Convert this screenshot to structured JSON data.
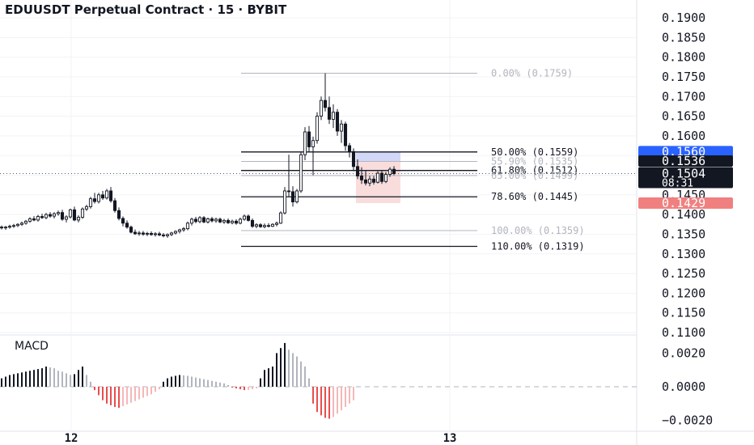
{
  "chart_data": [
    {
      "type": "candlestick",
      "title": "EDUUSDT Perpetual Contract · 15 · BYBIT",
      "x_ticks": [
        "12",
        "13"
      ],
      "y_ticks": [
        "0.1900",
        "0.1850",
        "0.1800",
        "0.1750",
        "0.1700",
        "0.1650",
        "0.1600",
        "0.1550",
        "0.1500",
        "0.1450",
        "0.1400",
        "0.1350",
        "0.1300",
        "0.1250",
        "0.1200",
        "0.1150",
        "0.1100"
      ],
      "ylim": [
        0.1068,
        0.1936
      ],
      "grid": true,
      "candles": [
        [
          0.1368,
          0.1372,
          0.1362,
          0.1366
        ],
        [
          0.1366,
          0.1371,
          0.1361,
          0.1368
        ],
        [
          0.1368,
          0.1374,
          0.1364,
          0.137
        ],
        [
          0.137,
          0.1376,
          0.1366,
          0.1372
        ],
        [
          0.1372,
          0.1378,
          0.1368,
          0.1375
        ],
        [
          0.1375,
          0.1382,
          0.1371,
          0.1378
        ],
        [
          0.1378,
          0.1386,
          0.1374,
          0.1383
        ],
        [
          0.1383,
          0.1393,
          0.1379,
          0.1389
        ],
        [
          0.1389,
          0.1396,
          0.1383,
          0.1386
        ],
        [
          0.1386,
          0.1399,
          0.1382,
          0.1395
        ],
        [
          0.1395,
          0.1402,
          0.1389,
          0.1392
        ],
        [
          0.1392,
          0.1404,
          0.1388,
          0.14
        ],
        [
          0.14,
          0.1406,
          0.1392,
          0.1396
        ],
        [
          0.1396,
          0.1406,
          0.139,
          0.1402
        ],
        [
          0.1402,
          0.141,
          0.1397,
          0.1405
        ],
        [
          0.1405,
          0.1412,
          0.1384,
          0.1388
        ],
        [
          0.1388,
          0.1398,
          0.138,
          0.1394
        ],
        [
          0.1394,
          0.1415,
          0.139,
          0.1412
        ],
        [
          0.1412,
          0.142,
          0.1383,
          0.1386
        ],
        [
          0.1386,
          0.1398,
          0.138,
          0.1393
        ],
        [
          0.1393,
          0.1418,
          0.1389,
          0.1414
        ],
        [
          0.1414,
          0.1425,
          0.1409,
          0.142
        ],
        [
          0.142,
          0.1445,
          0.1415,
          0.144
        ],
        [
          0.144,
          0.1455,
          0.1428,
          0.1433
        ],
        [
          0.1433,
          0.1455,
          0.1428,
          0.145
        ],
        [
          0.145,
          0.146,
          0.1437,
          0.1442
        ],
        [
          0.1442,
          0.1465,
          0.1438,
          0.146
        ],
        [
          0.146,
          0.147,
          0.143,
          0.1435
        ],
        [
          0.1435,
          0.1442,
          0.1405,
          0.141
        ],
        [
          0.141,
          0.1418,
          0.1385,
          0.139
        ],
        [
          0.139,
          0.1395,
          0.137,
          0.1378
        ],
        [
          0.1378,
          0.1385,
          0.1364,
          0.1368
        ],
        [
          0.1368,
          0.1372,
          0.1352,
          0.1355
        ],
        [
          0.1355,
          0.1362,
          0.1348,
          0.1351
        ],
        [
          0.1351,
          0.1358,
          0.1346,
          0.1353
        ],
        [
          0.1353,
          0.1358,
          0.1346,
          0.135
        ],
        [
          0.135,
          0.1356,
          0.1345,
          0.1352
        ],
        [
          0.1352,
          0.1357,
          0.1346,
          0.1349
        ],
        [
          0.1349,
          0.1355,
          0.1344,
          0.1351
        ],
        [
          0.1351,
          0.1356,
          0.1345,
          0.1348
        ],
        [
          0.1348,
          0.1353,
          0.1342,
          0.1346
        ],
        [
          0.1346,
          0.1352,
          0.1341,
          0.1349
        ],
        [
          0.1349,
          0.1356,
          0.1345,
          0.1353
        ],
        [
          0.1353,
          0.136,
          0.1349,
          0.1357
        ],
        [
          0.1357,
          0.1364,
          0.1352,
          0.1361
        ],
        [
          0.1361,
          0.1368,
          0.1356,
          0.1364
        ],
        [
          0.1364,
          0.1382,
          0.136,
          0.1378
        ],
        [
          0.1378,
          0.1392,
          0.1372,
          0.1388
        ],
        [
          0.1388,
          0.1394,
          0.1378,
          0.1382
        ],
        [
          0.1382,
          0.1396,
          0.1378,
          0.1392
        ],
        [
          0.1392,
          0.1396,
          0.1378,
          0.1381
        ],
        [
          0.1381,
          0.1392,
          0.1377,
          0.1389
        ],
        [
          0.1389,
          0.1394,
          0.138,
          0.1384
        ],
        [
          0.1384,
          0.1392,
          0.1379,
          0.1388
        ],
        [
          0.1388,
          0.1392,
          0.1378,
          0.1381
        ],
        [
          0.1381,
          0.1389,
          0.1376,
          0.1385
        ],
        [
          0.1385,
          0.139,
          0.1376,
          0.1379
        ],
        [
          0.1379,
          0.1387,
          0.1375,
          0.1383
        ],
        [
          0.1383,
          0.1388,
          0.1374,
          0.1378
        ],
        [
          0.1378,
          0.1392,
          0.1375,
          0.1388
        ],
        [
          0.1388,
          0.14,
          0.1384,
          0.1396
        ],
        [
          0.1396,
          0.14,
          0.1382,
          0.1385
        ],
        [
          0.1385,
          0.139,
          0.1366,
          0.137
        ],
        [
          0.137,
          0.1378,
          0.1365,
          0.1374
        ],
        [
          0.1374,
          0.1378,
          0.1366,
          0.1369
        ],
        [
          0.1369,
          0.1377,
          0.1365,
          0.1372
        ],
        [
          0.1372,
          0.1378,
          0.1367,
          0.137
        ],
        [
          0.137,
          0.1378,
          0.1368,
          0.1375
        ],
        [
          0.1375,
          0.1382,
          0.137,
          0.1378
        ],
        [
          0.1378,
          0.1408,
          0.1376,
          0.1404
        ],
        [
          0.1404,
          0.147,
          0.14,
          0.146
        ],
        [
          0.146,
          0.1552,
          0.1445,
          0.1458
        ],
        [
          0.1458,
          0.1472,
          0.142,
          0.1432
        ],
        [
          0.1432,
          0.1465,
          0.1428,
          0.146
        ],
        [
          0.146,
          0.156,
          0.1455,
          0.1552
        ],
        [
          0.1552,
          0.1622,
          0.1538,
          0.161
        ],
        [
          0.161,
          0.1625,
          0.156,
          0.1572
        ],
        [
          0.1572,
          0.1598,
          0.15,
          0.1588
        ],
        [
          0.1588,
          0.166,
          0.158,
          0.165
        ],
        [
          0.165,
          0.17,
          0.164,
          0.169
        ],
        [
          0.169,
          0.1759,
          0.1662,
          0.1672
        ],
        [
          0.1672,
          0.17,
          0.163,
          0.1642
        ],
        [
          0.1642,
          0.168,
          0.162,
          0.166
        ],
        [
          0.166,
          0.1668,
          0.16,
          0.1612
        ],
        [
          0.1612,
          0.164,
          0.1582,
          0.163
        ],
        [
          0.163,
          0.1636,
          0.1562,
          0.1575
        ],
        [
          0.1575,
          0.1582,
          0.1545,
          0.156
        ],
        [
          0.156,
          0.1568,
          0.151,
          0.1522
        ],
        [
          0.1522,
          0.154,
          0.149,
          0.1498
        ],
        [
          0.1498,
          0.152,
          0.1478,
          0.1488
        ],
        [
          0.1488,
          0.1512,
          0.1474,
          0.148
        ],
        [
          0.148,
          0.1498,
          0.1472,
          0.149
        ],
        [
          0.149,
          0.1498,
          0.1476,
          0.1482
        ],
        [
          0.1482,
          0.151,
          0.1479,
          0.1505
        ],
        [
          0.1505,
          0.1512,
          0.1478,
          0.1484
        ],
        [
          0.1484,
          0.1508,
          0.148,
          0.1502
        ],
        [
          0.1502,
          0.152,
          0.1496,
          0.1515
        ],
        [
          0.1515,
          0.1523,
          0.15,
          0.1504
        ]
      ],
      "current_price": {
        "value": 0.1504,
        "label": "0.1504",
        "countdown": "08:31",
        "color": "#131722"
      },
      "price_tags": [
        {
          "value": 0.156,
          "label": "0.1560",
          "color": "#2962ff"
        },
        {
          "value": 0.1536,
          "label": "0.1536",
          "color": "#131722"
        },
        {
          "value": 0.1429,
          "label": "0.1429",
          "color": "#f08080"
        }
      ],
      "fibonacci": [
        {
          "level": "0.00%",
          "price": 0.1759,
          "label": "0.00% (0.1759)",
          "strong": false
        },
        {
          "level": "50.00%",
          "price": 0.1559,
          "label": "50.00% (0.1559)",
          "strong": true
        },
        {
          "level": "55.90%",
          "price": 0.1535,
          "label": "55.90% (0.1535)",
          "strong": false
        },
        {
          "level": "61.80%",
          "price": 0.1512,
          "label": "61.80% (0.1512)",
          "strong": true
        },
        {
          "level": "65.00%",
          "price": 0.1499,
          "label": "65.00% (0.1499)",
          "strong": false
        },
        {
          "level": "78.60%",
          "price": 0.1445,
          "label": "78.60% (0.1445)",
          "strong": true
        },
        {
          "level": "100.00%",
          "price": 0.1359,
          "label": "100.00% (0.1359)",
          "strong": false
        },
        {
          "level": "110.00%",
          "price": 0.1319,
          "label": "110.00% (0.1319)",
          "strong": true
        }
      ],
      "position_box": {
        "entry": 0.1535,
        "target": 0.1559,
        "stop": 0.1429,
        "start_bar": 88,
        "end_bar": 98,
        "profit_color": "#c8cdf6",
        "loss_color": "#f7d5d5"
      }
    },
    {
      "type": "histogram",
      "title": "MACD",
      "y_ticks": [
        "0.0020",
        "0.0000",
        "−0.0020"
      ],
      "ylim": [
        -0.0024,
        0.0024
      ],
      "zero_line": true,
      "values": [
        0.0005,
        0.0006,
        0.0007,
        0.00075,
        0.0008,
        0.00085,
        0.0009,
        0.00095,
        0.001,
        0.00105,
        0.0011,
        0.0012,
        0.00115,
        0.0011,
        0.00095,
        0.0009,
        0.0008,
        0.0007,
        0.00075,
        0.001,
        0.0012,
        0.0007,
        0.0003,
        -0.0002,
        -0.0005,
        -0.0008,
        -0.001,
        -0.0011,
        -0.0012,
        -0.00125,
        -0.00115,
        -0.00105,
        -0.00095,
        -0.00085,
        -0.00075,
        -0.00065,
        -0.00055,
        -0.00045,
        -0.0003,
        -0.00015,
        0.0003,
        0.0005,
        0.0006,
        0.00065,
        0.0007,
        0.00068,
        0.00065,
        0.0006,
        0.00055,
        0.0005,
        0.00045,
        0.0004,
        0.00035,
        0.0003,
        0.00025,
        0.0002,
        0.0001,
        -5e-05,
        -0.0001,
        -0.00015,
        -0.0002,
        -0.00018,
        -0.00015,
        -0.0001,
        0.0005,
        0.001,
        0.0011,
        0.0012,
        0.002,
        0.0023,
        0.0026,
        0.0022,
        0.002,
        0.0018,
        0.0015,
        0.0012,
        0.0005,
        -0.001,
        -0.0015,
        -0.0017,
        -0.00185,
        -0.0019,
        -0.0018,
        -0.0016,
        -0.0014,
        -0.0012,
        -0.001,
        -0.0008
      ],
      "colors": {
        "up_strong": "#131722",
        "up_weak": "#b2b5be",
        "down_strong": "#e84d4d",
        "down_weak": "#f4b8b8"
      }
    }
  ]
}
